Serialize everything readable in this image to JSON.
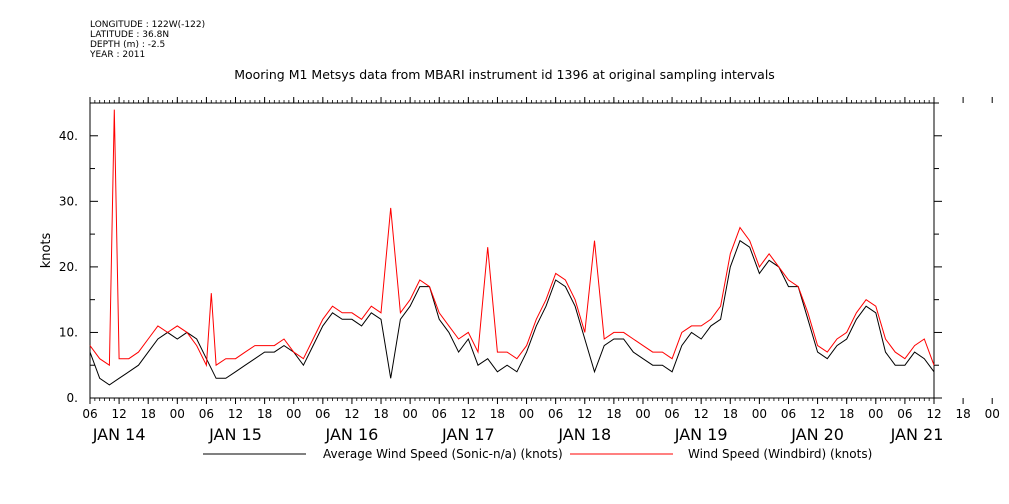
{
  "header": {
    "longitude": "LONGITUDE : 122W(-122)",
    "latitude": "LATITUDE : 36.8N",
    "depth": "DEPTH (m) : -2.5",
    "year": "YEAR : 2011"
  },
  "chart_data": {
    "type": "line",
    "title": "Mooring M1 Metsys data from MBARI instrument id 1396 at original sampling intervals",
    "ylabel": "knots",
    "ylim": [
      0,
      45
    ],
    "yticks": [
      0,
      10,
      20,
      30,
      40
    ],
    "ytick_labels": [
      "0.",
      "10.",
      "20.",
      "30.",
      "40."
    ],
    "xlim_hours": [
      0,
      174
    ],
    "hour_ticks": [
      "06",
      "12",
      "18",
      "00",
      "06",
      "12",
      "18",
      "00",
      "06",
      "12",
      "18",
      "00",
      "06",
      "12",
      "18",
      "00",
      "06",
      "12",
      "18",
      "00",
      "06",
      "12",
      "18",
      "00",
      "06",
      "12",
      "18",
      "00",
      "06",
      "12",
      "18",
      "00"
    ],
    "day_labels": [
      "JAN 14",
      "JAN 15",
      "JAN 16",
      "JAN 17",
      "JAN 18",
      "JAN 19",
      "JAN 20",
      "JAN 21"
    ],
    "grid": false,
    "legend_position": "bottom",
    "series": [
      {
        "name": "Average Wind Speed (Sonic-n/a) (knots)",
        "color": "#000000",
        "x_hours": [
          0,
          2,
          4,
          6,
          8,
          10,
          12,
          14,
          16,
          18,
          20,
          22,
          24,
          26,
          28,
          30,
          32,
          34,
          36,
          38,
          40,
          42,
          44,
          46,
          48,
          50,
          52,
          54,
          56,
          58,
          60,
          62,
          64,
          66,
          68,
          70,
          72,
          74,
          76,
          78,
          80,
          82,
          84,
          86,
          88,
          90,
          92,
          94,
          96,
          98,
          100,
          102,
          104,
          106,
          108,
          110,
          112,
          114,
          116,
          118,
          120,
          122,
          124,
          126,
          128,
          130,
          132,
          134,
          136,
          138,
          140,
          142,
          144,
          146,
          148,
          150,
          152,
          154,
          156,
          158,
          160,
          162,
          164,
          166,
          168,
          170,
          172,
          174
        ],
        "values": [
          7,
          3,
          2,
          3,
          4,
          5,
          7,
          9,
          10,
          9,
          10,
          9,
          6,
          3,
          3,
          4,
          5,
          6,
          7,
          7,
          8,
          7,
          5,
          8,
          11,
          13,
          12,
          12,
          11,
          13,
          12,
          3,
          12,
          14,
          17,
          17,
          12,
          10,
          7,
          9,
          5,
          6,
          4,
          5,
          4,
          7,
          11,
          14,
          18,
          17,
          14,
          9,
          4,
          8,
          9,
          9,
          7,
          6,
          5,
          5,
          4,
          8,
          10,
          9,
          11,
          12,
          20,
          24,
          23,
          19,
          21,
          20,
          17,
          17,
          12,
          7,
          6,
          8,
          9,
          12,
          14,
          13,
          7,
          5,
          5,
          7,
          6,
          4
        ]
      },
      {
        "name": "Wind Speed (Windbird) (knots)",
        "color": "#ff0000",
        "x_hours": [
          0,
          2,
          4,
          5,
          6,
          8,
          10,
          12,
          14,
          16,
          18,
          20,
          22,
          24,
          25,
          26,
          28,
          30,
          32,
          34,
          36,
          38,
          40,
          42,
          44,
          46,
          48,
          50,
          52,
          54,
          56,
          58,
          60,
          62,
          64,
          66,
          68,
          70,
          72,
          74,
          76,
          78,
          80,
          82,
          84,
          86,
          88,
          90,
          92,
          94,
          96,
          98,
          100,
          102,
          104,
          106,
          108,
          110,
          112,
          114,
          116,
          118,
          120,
          122,
          124,
          126,
          128,
          130,
          132,
          134,
          136,
          138,
          140,
          142,
          144,
          146,
          148,
          150,
          152,
          154,
          156,
          158,
          160,
          162,
          164,
          166,
          168,
          170,
          172,
          174
        ],
        "values": [
          8,
          6,
          5,
          44,
          6,
          6,
          7,
          9,
          11,
          10,
          11,
          10,
          8,
          5,
          16,
          5,
          6,
          6,
          7,
          8,
          8,
          8,
          9,
          7,
          6,
          9,
          12,
          14,
          13,
          13,
          12,
          14,
          13,
          29,
          13,
          15,
          18,
          17,
          13,
          11,
          9,
          10,
          7,
          23,
          7,
          7,
          6,
          8,
          12,
          15,
          19,
          18,
          15,
          10,
          24,
          9,
          10,
          10,
          9,
          8,
          7,
          7,
          6,
          10,
          11,
          11,
          12,
          14,
          22,
          26,
          24,
          20,
          22,
          20,
          18,
          17,
          13,
          8,
          7,
          9,
          10,
          13,
          15,
          14,
          9,
          7,
          6,
          8,
          9,
          5
        ]
      }
    ]
  }
}
